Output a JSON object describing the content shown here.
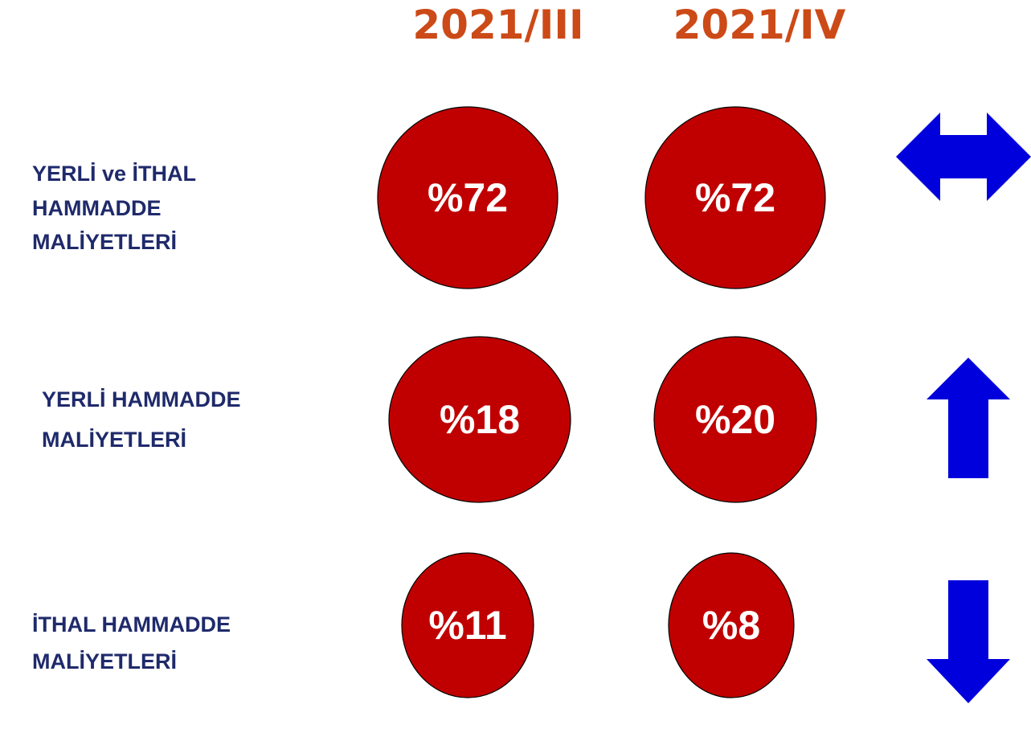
{
  "headers": [
    "2021/III",
    "2021/IV"
  ],
  "rows": [
    {
      "label": [
        "YERLİ ve İTHAL",
        "HAMMADDE",
        "MALİYETLERİ"
      ],
      "values": [
        "%72",
        "%72"
      ]
    },
    {
      "label": [
        "YERLİ HAMMADDE",
        "MALİYETLERİ"
      ],
      "values": [
        "%18",
        "%20"
      ]
    },
    {
      "label": [
        "İTHAL HAMMADDE",
        "MALİYETLERİ"
      ],
      "values": [
        "%11",
        "%8"
      ]
    }
  ]
}
